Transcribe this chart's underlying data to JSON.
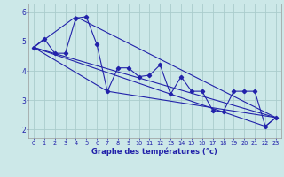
{
  "xlabel": "Graphe des températures (°c)",
  "bg_color": "#cce8e8",
  "grid_color": "#aacccc",
  "line_color": "#2222aa",
  "x_ticks": [
    0,
    1,
    2,
    3,
    4,
    5,
    6,
    7,
    8,
    9,
    10,
    11,
    12,
    13,
    14,
    15,
    16,
    17,
    18,
    19,
    20,
    21,
    22,
    23
  ],
  "ylim": [
    1.7,
    6.3
  ],
  "xlim": [
    -0.5,
    23.5
  ],
  "yticks": [
    2,
    3,
    4,
    5,
    6
  ],
  "main_series": [
    4.8,
    5.1,
    4.6,
    4.6,
    5.8,
    5.85,
    4.9,
    3.3,
    4.1,
    4.1,
    3.8,
    3.85,
    4.2,
    3.2,
    3.8,
    3.3,
    3.3,
    2.65,
    2.6,
    3.3,
    3.3,
    3.3,
    2.1,
    2.4
  ],
  "trend1_x": [
    0,
    23
  ],
  "trend1_y": [
    4.8,
    2.4
  ],
  "trend2_x": [
    0,
    4,
    23
  ],
  "trend2_y": [
    4.8,
    5.85,
    2.4
  ],
  "trend3_x": [
    0,
    7,
    23
  ],
  "trend3_y": [
    4.8,
    3.3,
    2.4
  ],
  "trend4_x": [
    0,
    22,
    23
  ],
  "trend4_y": [
    4.8,
    2.1,
    2.4
  ],
  "xlabel_fontsize": 6.0,
  "tick_fontsize_x": 4.8,
  "tick_fontsize_y": 5.5
}
